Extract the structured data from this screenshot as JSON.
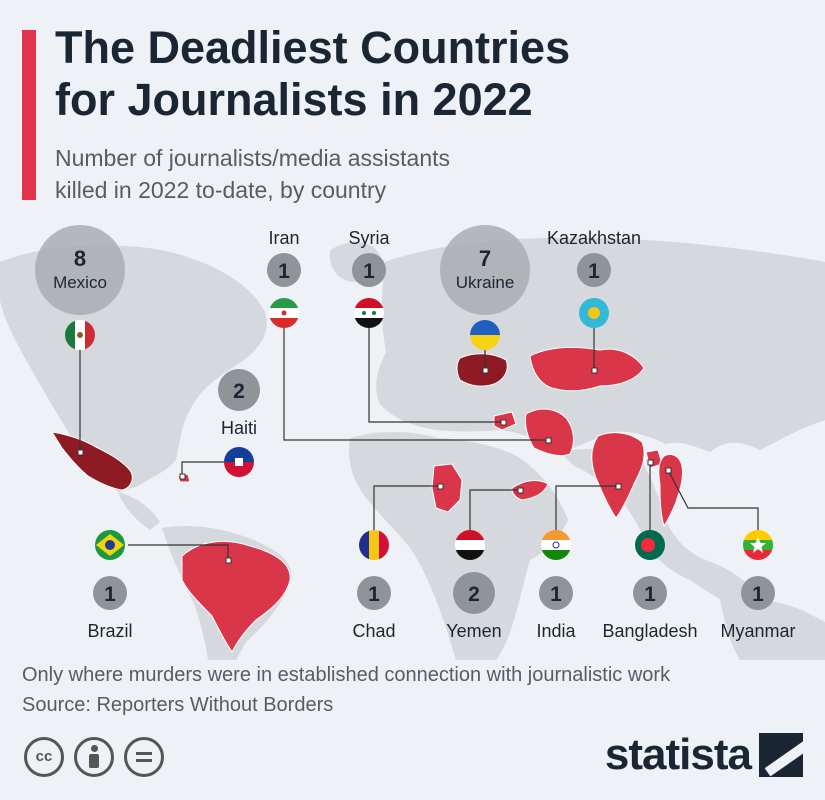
{
  "header": {
    "title_line1": "The Deadliest Countries",
    "title_line2": "for Journalists in 2022",
    "subtitle_line1": "Number of journalists/media assistants",
    "subtitle_line2": "killed in 2022 to-date, by country"
  },
  "colors": {
    "accent": "#e4344b",
    "highlight_country": "#d9364a",
    "top_country": "#8e1b24",
    "land": "#d4d7dc",
    "bubble_large": "#a9adb2",
    "bubble_small": "#8f9499"
  },
  "countries": [
    {
      "name": "Mexico",
      "count": 8,
      "flag": "mexico-flag"
    },
    {
      "name": "Ukraine",
      "count": 7,
      "flag": "ukraine-flag"
    },
    {
      "name": "Haiti",
      "count": 2,
      "flag": "haiti-flag"
    },
    {
      "name": "Yemen",
      "count": 2,
      "flag": "yemen-flag"
    },
    {
      "name": "Iran",
      "count": 1,
      "flag": "iran-flag"
    },
    {
      "name": "Syria",
      "count": 1,
      "flag": "syria-flag"
    },
    {
      "name": "Kazakhstan",
      "count": 1,
      "flag": "kazakhstan-flag"
    },
    {
      "name": "Brazil",
      "count": 1,
      "flag": "brazil-flag"
    },
    {
      "name": "Chad",
      "count": 1,
      "flag": "chad-flag"
    },
    {
      "name": "India",
      "count": 1,
      "flag": "india-flag"
    },
    {
      "name": "Bangladesh",
      "count": 1,
      "flag": "bangladesh-flag"
    },
    {
      "name": "Myanmar",
      "count": 1,
      "flag": "myanmar-flag"
    }
  ],
  "footer": {
    "note": "Only where murders were in established connection with journalistic work",
    "source": "Source: Reporters Without Borders",
    "license_icons": [
      "creative-commons-icon",
      "attribution-icon",
      "no-derivatives-icon"
    ],
    "brand": "statista"
  }
}
